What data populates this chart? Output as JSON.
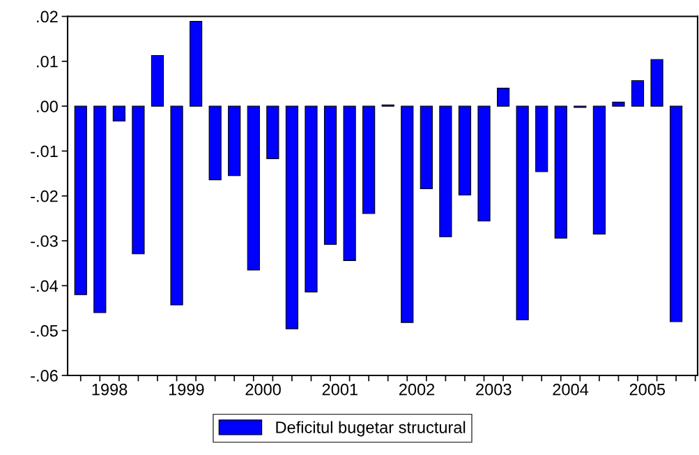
{
  "chart_data": {
    "type": "bar",
    "x": [
      1998.0,
      1998.25,
      1998.5,
      1998.75,
      1999.0,
      1999.25,
      1999.5,
      1999.75,
      2000.0,
      2000.25,
      2000.5,
      2000.75,
      2001.0,
      2001.25,
      2001.5,
      2001.75,
      2002.0,
      2002.25,
      2002.5,
      2002.75,
      2003.0,
      2003.25,
      2003.5,
      2003.75,
      2004.0,
      2004.25,
      2004.5,
      2004.75,
      2005.0,
      2005.25,
      2005.5,
      2005.75
    ],
    "series": [
      {
        "name": "Deficitul bugetar structural",
        "color": "#0000ff",
        "values": [
          -0.042,
          -0.046,
          -0.0033,
          -0.0329,
          0.0113,
          -0.0443,
          0.0189,
          -0.0164,
          -0.0155,
          -0.0365,
          -0.0117,
          -0.0496,
          -0.0414,
          -0.0308,
          -0.0344,
          -0.0239,
          0.0003,
          -0.0482,
          -0.0184,
          -0.0291,
          -0.0198,
          -0.0256,
          0.004,
          -0.0476,
          -0.0146,
          -0.0294,
          -0.0003,
          -0.0285,
          0.0009,
          0.0057,
          0.0104,
          -0.048
        ]
      }
    ],
    "xlim": [
      1997.83,
      2006.03
    ],
    "xticks": [
      {
        "value": 1998.375,
        "label": "1998"
      },
      {
        "value": 1999.375,
        "label": "1999"
      },
      {
        "value": 2000.375,
        "label": "2000"
      },
      {
        "value": 2001.375,
        "label": "2001"
      },
      {
        "value": 2002.375,
        "label": "2002"
      },
      {
        "value": 2003.375,
        "label": "2003"
      },
      {
        "value": 2004.375,
        "label": "2004"
      },
      {
        "value": 2005.375,
        "label": "2005"
      },
      {
        "value": 1998.0,
        "label": null
      },
      {
        "value": 1998.25,
        "label": null
      },
      {
        "value": 1998.5,
        "label": null
      },
      {
        "value": 1998.75,
        "label": null
      },
      {
        "value": 1999.0,
        "label": null
      },
      {
        "value": 1999.25,
        "label": null
      },
      {
        "value": 1999.5,
        "label": null
      },
      {
        "value": 1999.75,
        "label": null
      },
      {
        "value": 2000.0,
        "label": null
      },
      {
        "value": 2000.25,
        "label": null
      },
      {
        "value": 2000.5,
        "label": null
      },
      {
        "value": 2000.75,
        "label": null
      },
      {
        "value": 2001.0,
        "label": null
      },
      {
        "value": 2001.25,
        "label": null
      },
      {
        "value": 2001.5,
        "label": null
      },
      {
        "value": 2001.75,
        "label": null
      },
      {
        "value": 2002.0,
        "label": null
      },
      {
        "value": 2002.25,
        "label": null
      },
      {
        "value": 2002.5,
        "label": null
      },
      {
        "value": 2002.75,
        "label": null
      },
      {
        "value": 2003.0,
        "label": null
      },
      {
        "value": 2003.25,
        "label": null
      },
      {
        "value": 2003.5,
        "label": null
      },
      {
        "value": 2003.75,
        "label": null
      },
      {
        "value": 2004.0,
        "label": null
      },
      {
        "value": 2004.25,
        "label": null
      },
      {
        "value": 2004.5,
        "label": null
      },
      {
        "value": 2004.75,
        "label": null
      },
      {
        "value": 2005.0,
        "label": null
      },
      {
        "value": 2005.25,
        "label": null
      },
      {
        "value": 2005.5,
        "label": null
      },
      {
        "value": 2005.75,
        "label": null
      },
      {
        "value": 2006.0,
        "label": null
      }
    ],
    "ylim": [
      -0.06,
      0.02
    ],
    "yticks": [
      {
        "value": -0.06,
        "label": "-.06"
      },
      {
        "value": -0.05,
        "label": "-.05"
      },
      {
        "value": -0.04,
        "label": "-.04"
      },
      {
        "value": -0.03,
        "label": "-.03"
      },
      {
        "value": -0.02,
        "label": "-.02"
      },
      {
        "value": -0.01,
        "label": "-.01"
      },
      {
        "value": 0.0,
        "label": ".00"
      },
      {
        "value": 0.01,
        "label": ".01"
      },
      {
        "value": 0.02,
        "label": ".02"
      }
    ],
    "grid": false,
    "legend": "bottom"
  }
}
